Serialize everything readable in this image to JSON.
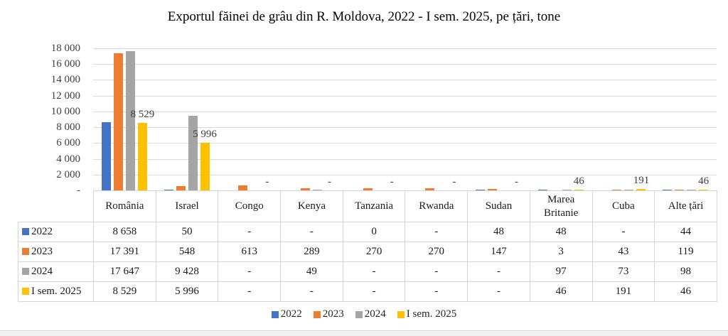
{
  "chart_data": {
    "type": "bar",
    "title": "Exportul făinei de grâu din R. Moldova, 2022 - I sem. 2025, pe țări, tone",
    "categories": [
      "România",
      "Israel",
      "Congo",
      "Kenya",
      "Tanzania",
      "Rwanda",
      "Sudan",
      "Marea Britanie",
      "Cuba",
      "Alte țări"
    ],
    "series": [
      {
        "name": "2022",
        "color": "#4472C4",
        "values": [
          8658,
          50,
          null,
          null,
          0,
          null,
          48,
          48,
          null,
          44
        ],
        "display": [
          "8 658",
          "50",
          "-",
          "-",
          "0",
          "-",
          "48",
          "48",
          "-",
          "44"
        ],
        "data_labels": false
      },
      {
        "name": "2023",
        "color": "#ED7D31",
        "values": [
          17391,
          548,
          613,
          289,
          270,
          270,
          147,
          3,
          43,
          119
        ],
        "display": [
          "17 391",
          "548",
          "613",
          "289",
          "270",
          "270",
          "147",
          "3",
          "43",
          "119"
        ],
        "data_labels": false
      },
      {
        "name": "2024",
        "color": "#A5A5A5",
        "values": [
          17647,
          9428,
          null,
          49,
          null,
          null,
          null,
          97,
          73,
          98
        ],
        "display": [
          "17 647",
          "9 428",
          "-",
          "49",
          "-",
          "-",
          "-",
          "97",
          "73",
          "98"
        ],
        "data_labels": false
      },
      {
        "name": "I sem. 2025",
        "color": "#FFC000",
        "values": [
          8529,
          5996,
          null,
          null,
          null,
          null,
          null,
          46,
          191,
          46
        ],
        "display": [
          "8 529",
          "5 996",
          "-",
          "-",
          "-",
          "-",
          "-",
          "46",
          "191",
          "46"
        ],
        "data_labels": true
      }
    ],
    "y_axis": {
      "min": 0,
      "max": 18000,
      "major_unit": 2000,
      "tick_labels": [
        "18 000",
        "16 000",
        "14 000",
        "12 000",
        "10 000",
        "8 000",
        "6 000",
        "4 000",
        "2 000",
        "-"
      ]
    },
    "grid": true,
    "legend_position": "bottom",
    "data_table_shown": true
  },
  "colors": {
    "gridline": "#D9D9D9",
    "table_border": "#D6D6D6",
    "axis_text": "#404040"
  }
}
